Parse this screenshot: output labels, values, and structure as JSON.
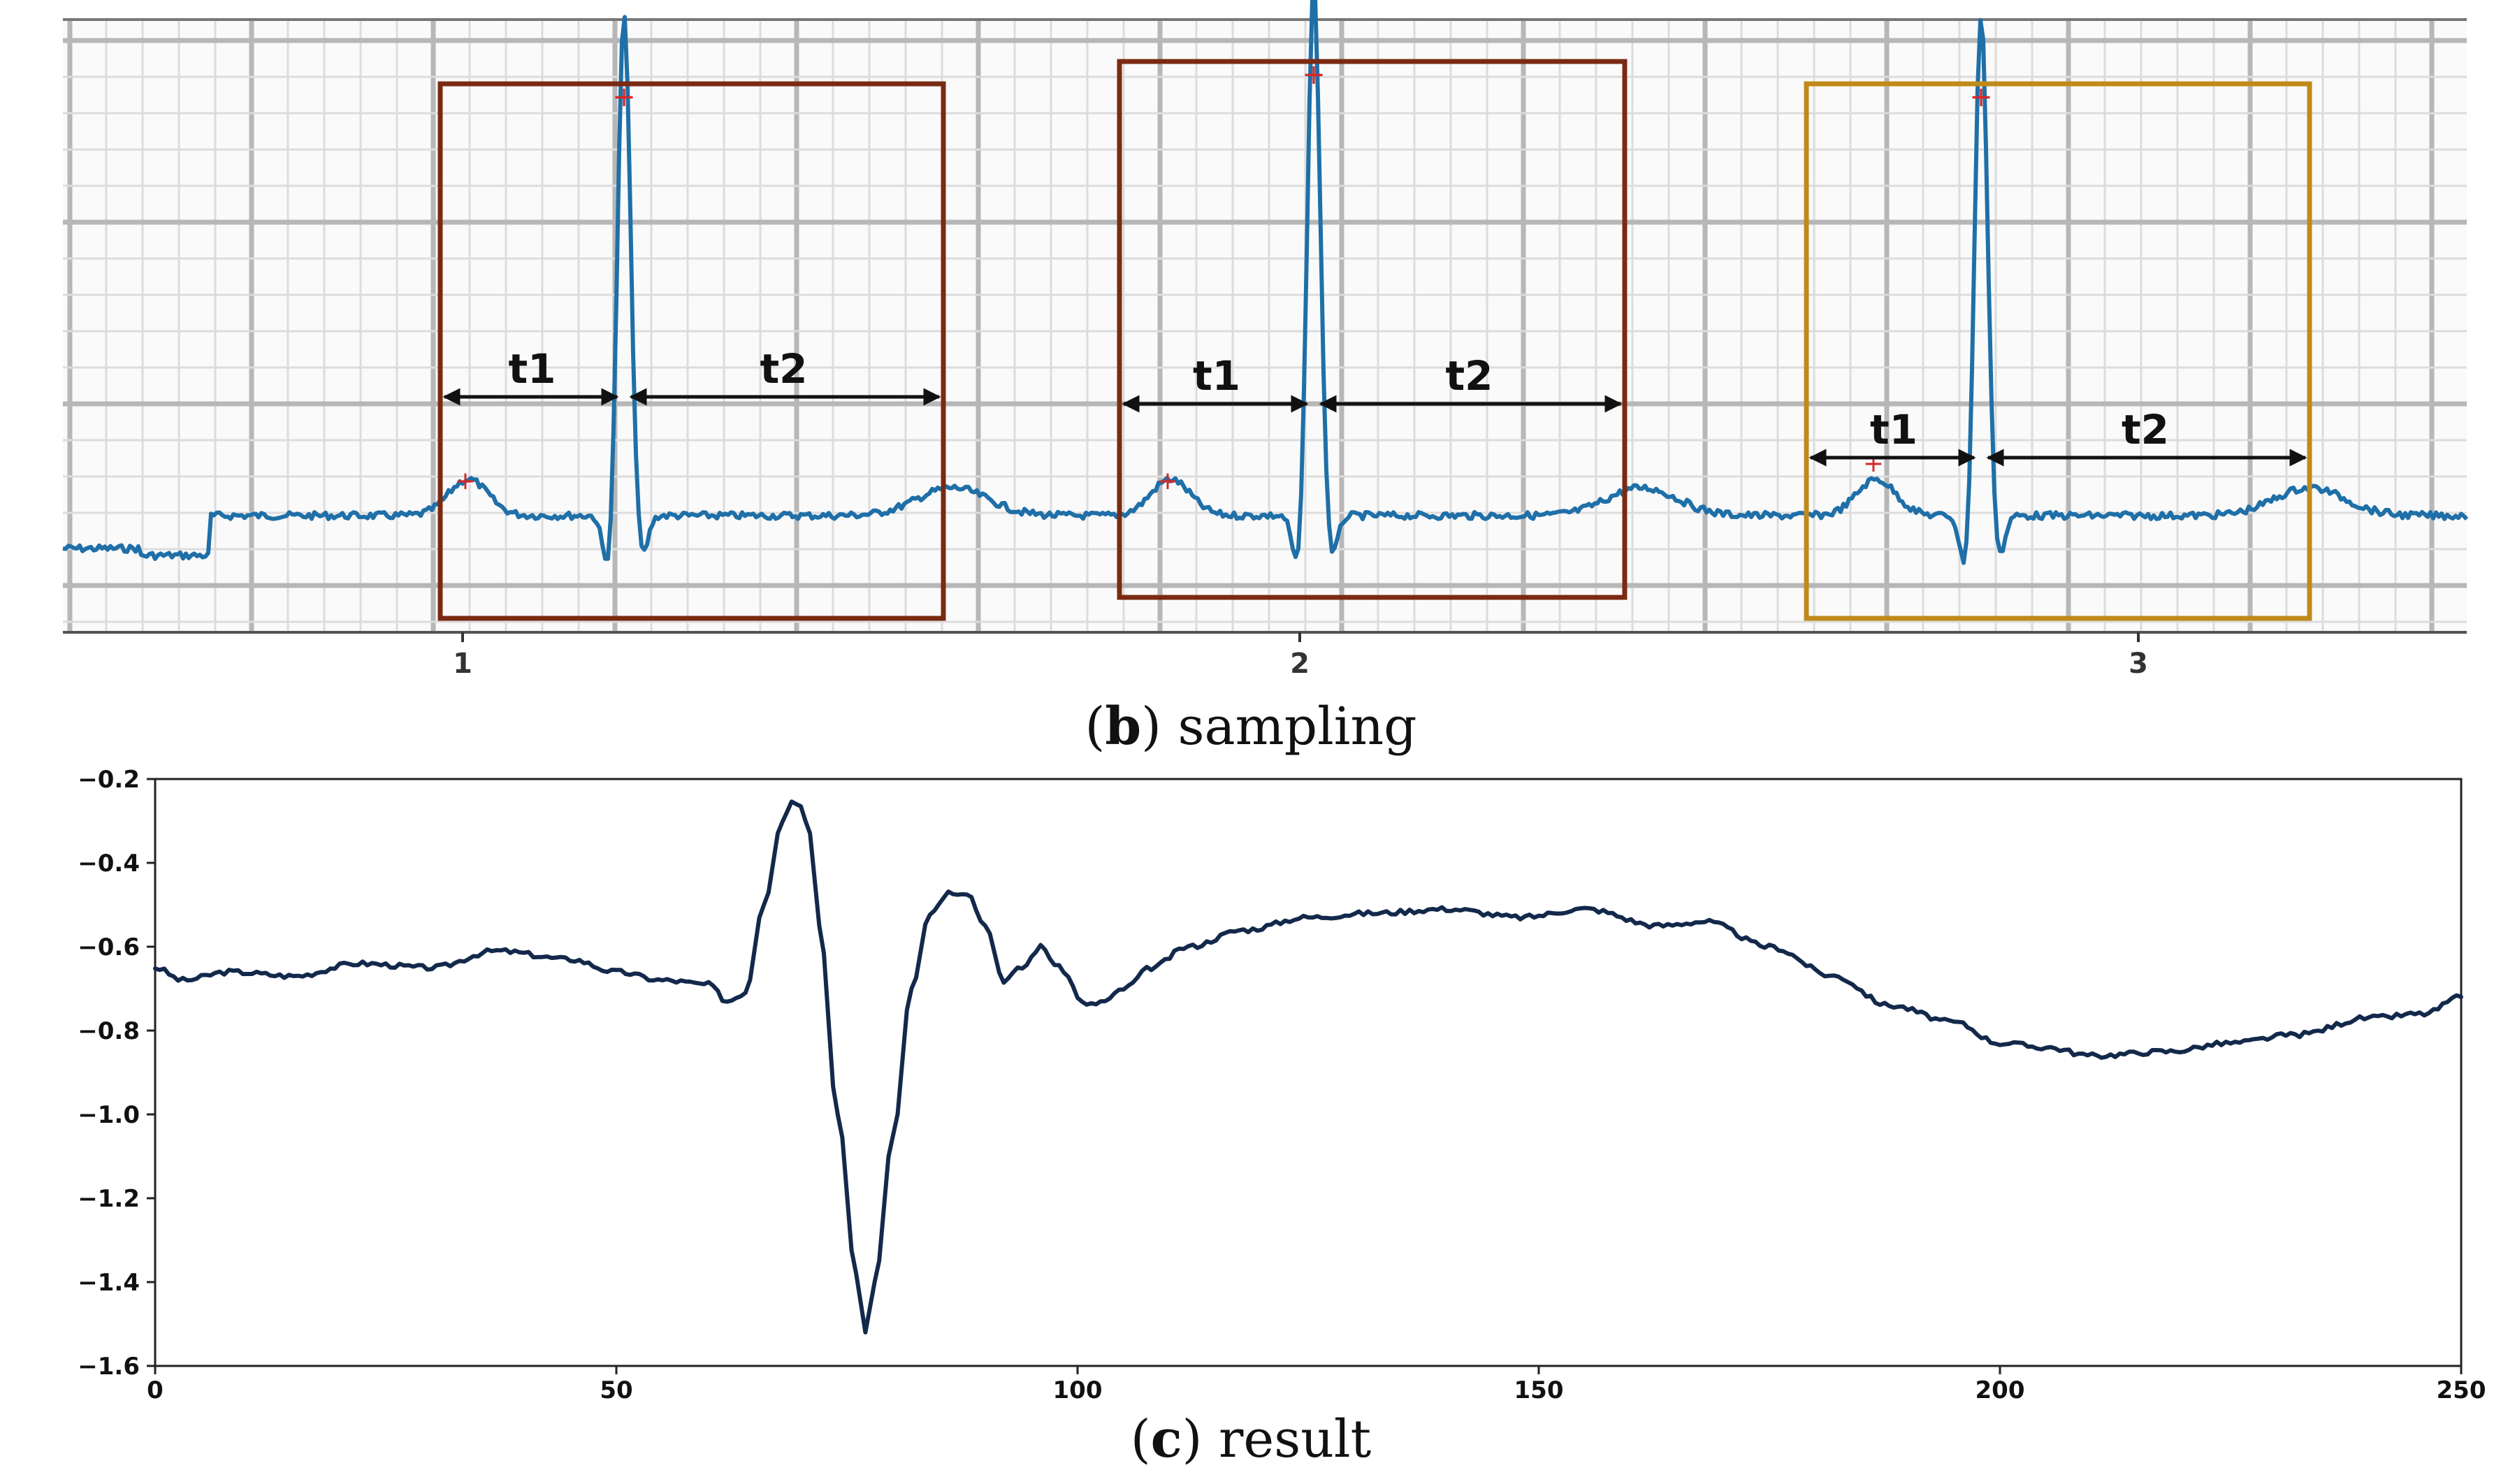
{
  "chart_data": [
    {
      "type": "line",
      "panel": "b",
      "caption_letter": "b",
      "caption_text": " sampling",
      "x_ticks": [
        "1",
        "2",
        "3"
      ],
      "beat_labels": [
        {
          "t1": "t1",
          "t2": "t2"
        },
        {
          "t1": "t1",
          "t2": "t2"
        },
        {
          "t1": "t1",
          "t2": "t2"
        }
      ],
      "grid": true,
      "series_color": "#1f6fa8",
      "box_colors": [
        "#7a2a12",
        "#7a2a12",
        "#c08a1a"
      ],
      "peak_marker_color": "#d62728"
    },
    {
      "type": "line",
      "panel": "c",
      "caption_letter": "c",
      "caption_text": " result",
      "xlim": [
        0,
        250
      ],
      "ylim": [
        -1.6,
        -0.2
      ],
      "x_ticks": [
        0,
        50,
        100,
        150,
        200,
        250
      ],
      "y_ticks": [
        -0.2,
        -0.4,
        -0.6,
        -0.8,
        -1.0,
        -1.2,
        -1.4,
        -1.6
      ],
      "y_tick_labels": [
        "−0.2",
        "−0.4",
        "−0.6",
        "−0.8",
        "−1.0",
        "−1.2",
        "−1.4",
        "−1.6"
      ],
      "series_color": "#13294b",
      "series": [
        {
          "name": "result",
          "x": [
            0,
            3,
            8,
            15,
            22,
            30,
            37,
            45,
            50,
            55,
            60,
            62,
            64,
            66,
            68,
            69,
            70,
            71,
            72,
            74,
            76,
            77,
            78,
            80,
            82,
            84,
            86,
            88,
            90,
            92,
            94,
            96,
            98,
            101,
            103,
            105,
            108,
            112,
            118,
            125,
            132,
            140,
            148,
            155,
            163,
            168,
            175,
            182,
            188,
            195,
            200,
            205,
            210,
            218,
            225,
            232,
            240,
            246,
            250
          ],
          "y": [
            -0.65,
            -0.68,
            -0.66,
            -0.67,
            -0.64,
            -0.65,
            -0.61,
            -0.63,
            -0.66,
            -0.68,
            -0.69,
            -0.73,
            -0.71,
            -0.5,
            -0.3,
            -0.25,
            -0.26,
            -0.33,
            -0.55,
            -1.0,
            -1.38,
            -1.52,
            -1.4,
            -1.05,
            -0.7,
            -0.52,
            -0.47,
            -0.47,
            -0.55,
            -0.68,
            -0.65,
            -0.6,
            -0.65,
            -0.74,
            -0.73,
            -0.7,
            -0.65,
            -0.6,
            -0.56,
            -0.53,
            -0.52,
            -0.51,
            -0.53,
            -0.51,
            -0.55,
            -0.54,
            -0.6,
            -0.67,
            -0.74,
            -0.78,
            -0.83,
            -0.84,
            -0.86,
            -0.85,
            -0.83,
            -0.81,
            -0.77,
            -0.76,
            -0.72
          ]
        }
      ]
    }
  ]
}
